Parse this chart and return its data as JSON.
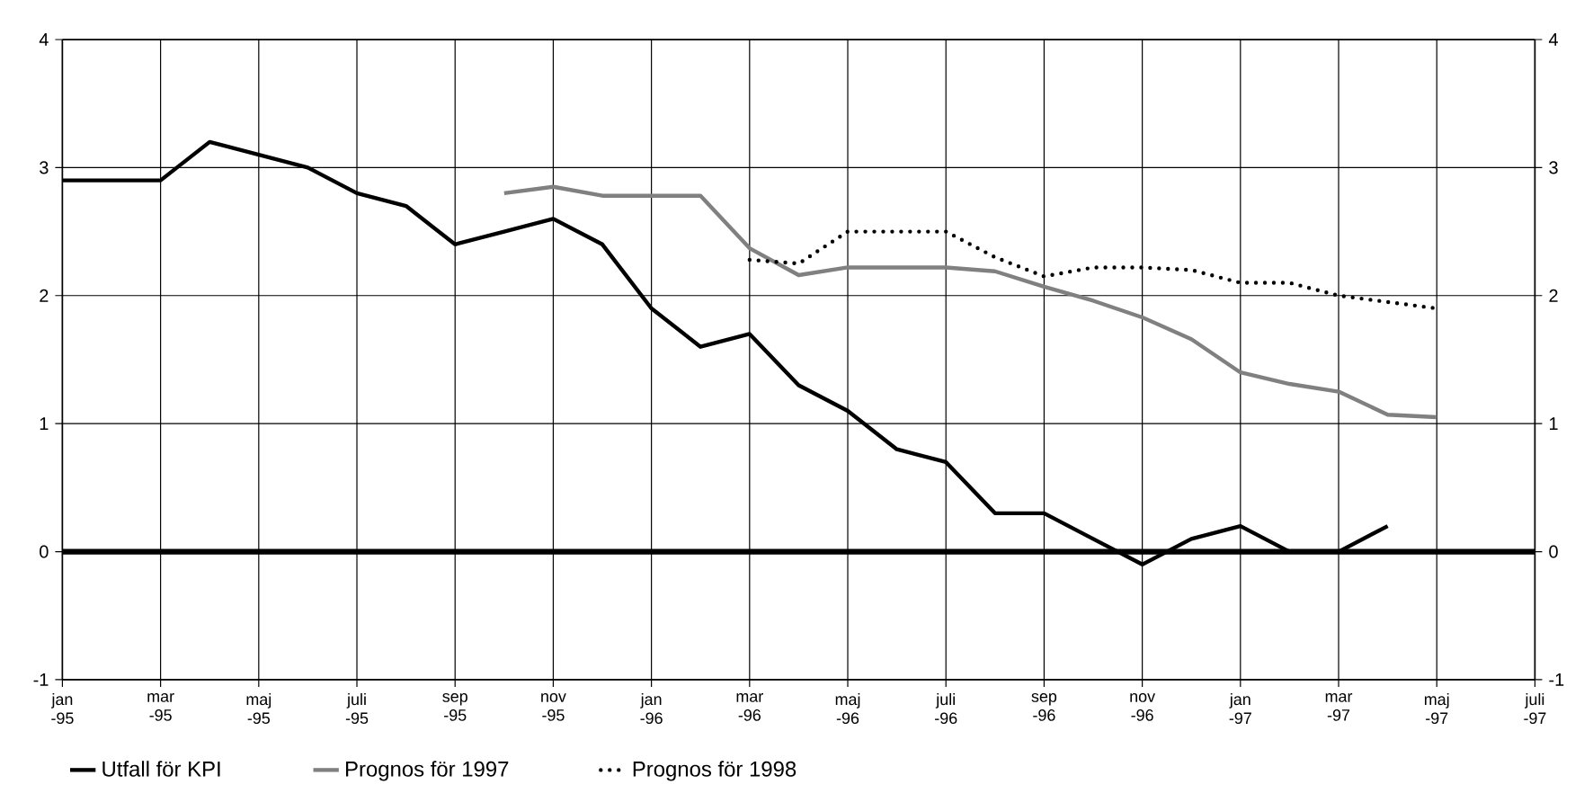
{
  "chart_data": {
    "type": "line",
    "xlim": [
      "1995-01",
      "1997-07"
    ],
    "xticks": [
      {
        "value": "1995-01",
        "label": "jan -95"
      },
      {
        "value": "1995-03",
        "label": "mar -95"
      },
      {
        "value": "1995-05",
        "label": "maj -95"
      },
      {
        "value": "1995-07",
        "label": "juli -95"
      },
      {
        "value": "1995-09",
        "label": "sep -95"
      },
      {
        "value": "1995-11",
        "label": "nov -95"
      },
      {
        "value": "1996-01",
        "label": "jan -96"
      },
      {
        "value": "1996-03",
        "label": "mar -96"
      },
      {
        "value": "1996-05",
        "label": "maj -96"
      },
      {
        "value": "1996-07",
        "label": "juli -96"
      },
      {
        "value": "1996-09",
        "label": "sep -96"
      },
      {
        "value": "1996-11",
        "label": "nov -96"
      },
      {
        "value": "1997-01",
        "label": "jan -97"
      },
      {
        "value": "1997-03",
        "label": "mar -97"
      },
      {
        "value": "1997-05",
        "label": "maj -97"
      },
      {
        "value": "1997-07",
        "label": "juli -97"
      }
    ],
    "ylim": [
      -1,
      4
    ],
    "yticks": [
      -1,
      0,
      1,
      2,
      3,
      4
    ],
    "y2lim": [
      -1,
      4
    ],
    "y2ticks": [
      -1,
      0,
      1,
      2,
      3,
      4
    ],
    "grid": true,
    "legend": "bottom",
    "marker": "none",
    "ref_lines": [
      {
        "axis": "y",
        "value": 0,
        "color": "#000000"
      }
    ],
    "series": [
      {
        "name": "Utfall för KPI",
        "color": "#000000",
        "line_style": "solid",
        "x": [
          "1995-01",
          "1995-02",
          "1995-03",
          "1995-04",
          "1995-05",
          "1995-06",
          "1995-07",
          "1995-08",
          "1995-09",
          "1995-10",
          "1995-11",
          "1995-12",
          "1996-01",
          "1996-02",
          "1996-03",
          "1996-04",
          "1996-05",
          "1996-06",
          "1996-07",
          "1996-08",
          "1996-09",
          "1996-10",
          "1996-11",
          "1996-12",
          "1997-01",
          "1997-02",
          "1997-03",
          "1997-04"
        ],
        "values": [
          2.9,
          2.9,
          2.9,
          3.2,
          3.1,
          3.0,
          2.8,
          2.7,
          2.4,
          2.5,
          2.6,
          2.4,
          1.9,
          1.6,
          1.7,
          1.3,
          1.1,
          0.8,
          0.7,
          0.3,
          0.3,
          0.1,
          -0.1,
          0.1,
          0.2,
          0.0,
          0.0,
          0.2
        ]
      },
      {
        "name": "Prognos för 1997",
        "color": "#808080",
        "line_style": "solid",
        "x": [
          "1995-10",
          "1995-11",
          "1995-12",
          "1996-01",
          "1996-02",
          "1996-03",
          "1996-04",
          "1996-05",
          "1996-06",
          "1996-07",
          "1996-08",
          "1996-09",
          "1996-10",
          "1996-11",
          "1996-12",
          "1997-01",
          "1997-02",
          "1997-03",
          "1997-04",
          "1997-05"
        ],
        "values": [
          2.8,
          2.85,
          2.78,
          2.78,
          2.78,
          2.37,
          2.16,
          2.22,
          2.22,
          2.22,
          2.19,
          2.07,
          1.96,
          1.83,
          1.66,
          1.4,
          1.31,
          1.25,
          1.07,
          1.05
        ]
      },
      {
        "name": "Prognos för 1998",
        "color": "#000000",
        "line_style": "dotted",
        "x": [
          "1996-03",
          "1996-04",
          "1996-05",
          "1996-06",
          "1996-07",
          "1996-08",
          "1996-09",
          "1996-10",
          "1996-11",
          "1996-12",
          "1997-01",
          "1997-02",
          "1997-03",
          "1997-04",
          "1997-05"
        ],
        "values": [
          2.28,
          2.25,
          2.5,
          2.5,
          2.5,
          2.3,
          2.15,
          2.22,
          2.22,
          2.2,
          2.1,
          2.1,
          2.0,
          1.95,
          1.9
        ]
      }
    ]
  }
}
